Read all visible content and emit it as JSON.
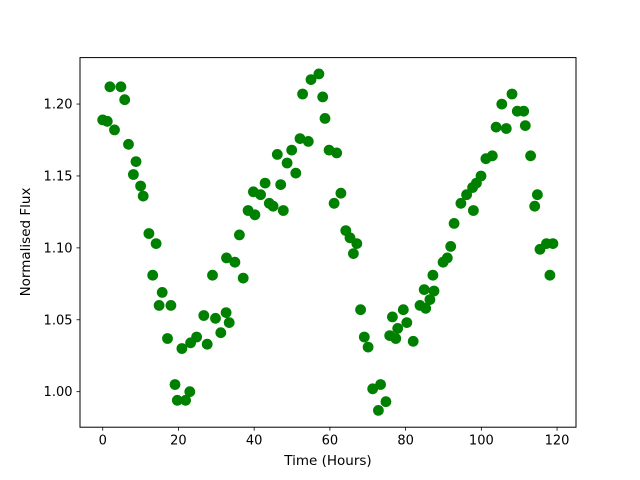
{
  "window": {
    "background": "#ffffff"
  },
  "chart_data": {
    "type": "scatter",
    "title": "",
    "xlabel": "Time (Hours)",
    "ylabel": "Normalised Flux",
    "xlim": [
      -6,
      125
    ],
    "ylim": [
      0.9753,
      1.2323
    ],
    "grid": false,
    "legend": null,
    "marker": {
      "shape": "circle",
      "color": "#008000",
      "radius_px": 5.4
    },
    "axis_color": "#000000",
    "xticks": [
      {
        "value": 0,
        "label": "0"
      },
      {
        "value": 20,
        "label": "20"
      },
      {
        "value": 40,
        "label": "40"
      },
      {
        "value": 60,
        "label": "60"
      },
      {
        "value": 80,
        "label": "80"
      },
      {
        "value": 100,
        "label": "100"
      },
      {
        "value": 120,
        "label": "120"
      }
    ],
    "yticks": [
      {
        "value": 1.0,
        "label": "1.00"
      },
      {
        "value": 1.05,
        "label": "1.05"
      },
      {
        "value": 1.1,
        "label": "1.10"
      },
      {
        "value": 1.15,
        "label": "1.15"
      },
      {
        "value": 1.2,
        "label": "1.20"
      }
    ],
    "series": [
      {
        "name": "normalised-flux",
        "color": "#008000",
        "points": [
          [
            0.0,
            1.189
          ],
          [
            1.2,
            1.188
          ],
          [
            1.9,
            1.212
          ],
          [
            3.1,
            1.182
          ],
          [
            4.8,
            1.212
          ],
          [
            5.8,
            1.203
          ],
          [
            6.8,
            1.172
          ],
          [
            8.1,
            1.151
          ],
          [
            8.8,
            1.16
          ],
          [
            10.0,
            1.143
          ],
          [
            10.7,
            1.136
          ],
          [
            12.2,
            1.11
          ],
          [
            13.2,
            1.081
          ],
          [
            14.1,
            1.103
          ],
          [
            14.9,
            1.06
          ],
          [
            15.7,
            1.069
          ],
          [
            17.1,
            1.037
          ],
          [
            18.0,
            1.06
          ],
          [
            19.1,
            1.005
          ],
          [
            19.7,
            0.994
          ],
          [
            20.9,
            1.03
          ],
          [
            21.9,
            0.994
          ],
          [
            23.0,
            1.0
          ],
          [
            23.2,
            1.034
          ],
          [
            24.8,
            1.038
          ],
          [
            26.7,
            1.053
          ],
          [
            27.6,
            1.033
          ],
          [
            29.0,
            1.081
          ],
          [
            29.8,
            1.051
          ],
          [
            31.2,
            1.041
          ],
          [
            32.6,
            1.055
          ],
          [
            32.7,
            1.093
          ],
          [
            33.4,
            1.048
          ],
          [
            34.9,
            1.09
          ],
          [
            36.1,
            1.109
          ],
          [
            37.1,
            1.079
          ],
          [
            38.4,
            1.126
          ],
          [
            39.8,
            1.139
          ],
          [
            40.2,
            1.123
          ],
          [
            41.7,
            1.137
          ],
          [
            42.9,
            1.145
          ],
          [
            44.0,
            1.131
          ],
          [
            45.0,
            1.129
          ],
          [
            46.1,
            1.165
          ],
          [
            47.0,
            1.144
          ],
          [
            47.7,
            1.126
          ],
          [
            48.7,
            1.159
          ],
          [
            49.9,
            1.168
          ],
          [
            51.0,
            1.152
          ],
          [
            52.1,
            1.176
          ],
          [
            52.8,
            1.207
          ],
          [
            54.3,
            1.174
          ],
          [
            55.0,
            1.217
          ],
          [
            57.1,
            1.221
          ],
          [
            58.1,
            1.205
          ],
          [
            58.7,
            1.19
          ],
          [
            59.8,
            1.168
          ],
          [
            61.1,
            1.131
          ],
          [
            61.8,
            1.166
          ],
          [
            62.9,
            1.138
          ],
          [
            64.2,
            1.112
          ],
          [
            65.3,
            1.107
          ],
          [
            66.2,
            1.096
          ],
          [
            67.1,
            1.103
          ],
          [
            68.1,
            1.057
          ],
          [
            69.1,
            1.038
          ],
          [
            70.1,
            1.031
          ],
          [
            71.3,
            1.002
          ],
          [
            72.8,
            0.987
          ],
          [
            73.4,
            1.005
          ],
          [
            74.8,
            0.993
          ],
          [
            75.8,
            1.039
          ],
          [
            76.5,
            1.052
          ],
          [
            77.4,
            1.037
          ],
          [
            77.9,
            1.044
          ],
          [
            79.4,
            1.057
          ],
          [
            80.3,
            1.048
          ],
          [
            82.0,
            1.035
          ],
          [
            83.8,
            1.06
          ],
          [
            84.9,
            1.071
          ],
          [
            85.3,
            1.058
          ],
          [
            86.4,
            1.064
          ],
          [
            87.2,
            1.081
          ],
          [
            87.5,
            1.07
          ],
          [
            89.9,
            1.09
          ],
          [
            91.0,
            1.093
          ],
          [
            91.9,
            1.101
          ],
          [
            92.8,
            1.117
          ],
          [
            94.6,
            1.131
          ],
          [
            96.1,
            1.137
          ],
          [
            97.7,
            1.142
          ],
          [
            97.9,
            1.126
          ],
          [
            98.7,
            1.145
          ],
          [
            99.9,
            1.15
          ],
          [
            101.2,
            1.162
          ],
          [
            102.9,
            1.164
          ],
          [
            103.9,
            1.184
          ],
          [
            105.4,
            1.2
          ],
          [
            106.6,
            1.183
          ],
          [
            108.1,
            1.207
          ],
          [
            109.5,
            1.195
          ],
          [
            111.2,
            1.195
          ],
          [
            111.6,
            1.185
          ],
          [
            113.0,
            1.164
          ],
          [
            114.1,
            1.129
          ],
          [
            114.8,
            1.137
          ],
          [
            115.5,
            1.099
          ],
          [
            117.2,
            1.103
          ],
          [
            118.1,
            1.081
          ],
          [
            118.9,
            1.103
          ]
        ]
      }
    ]
  }
}
